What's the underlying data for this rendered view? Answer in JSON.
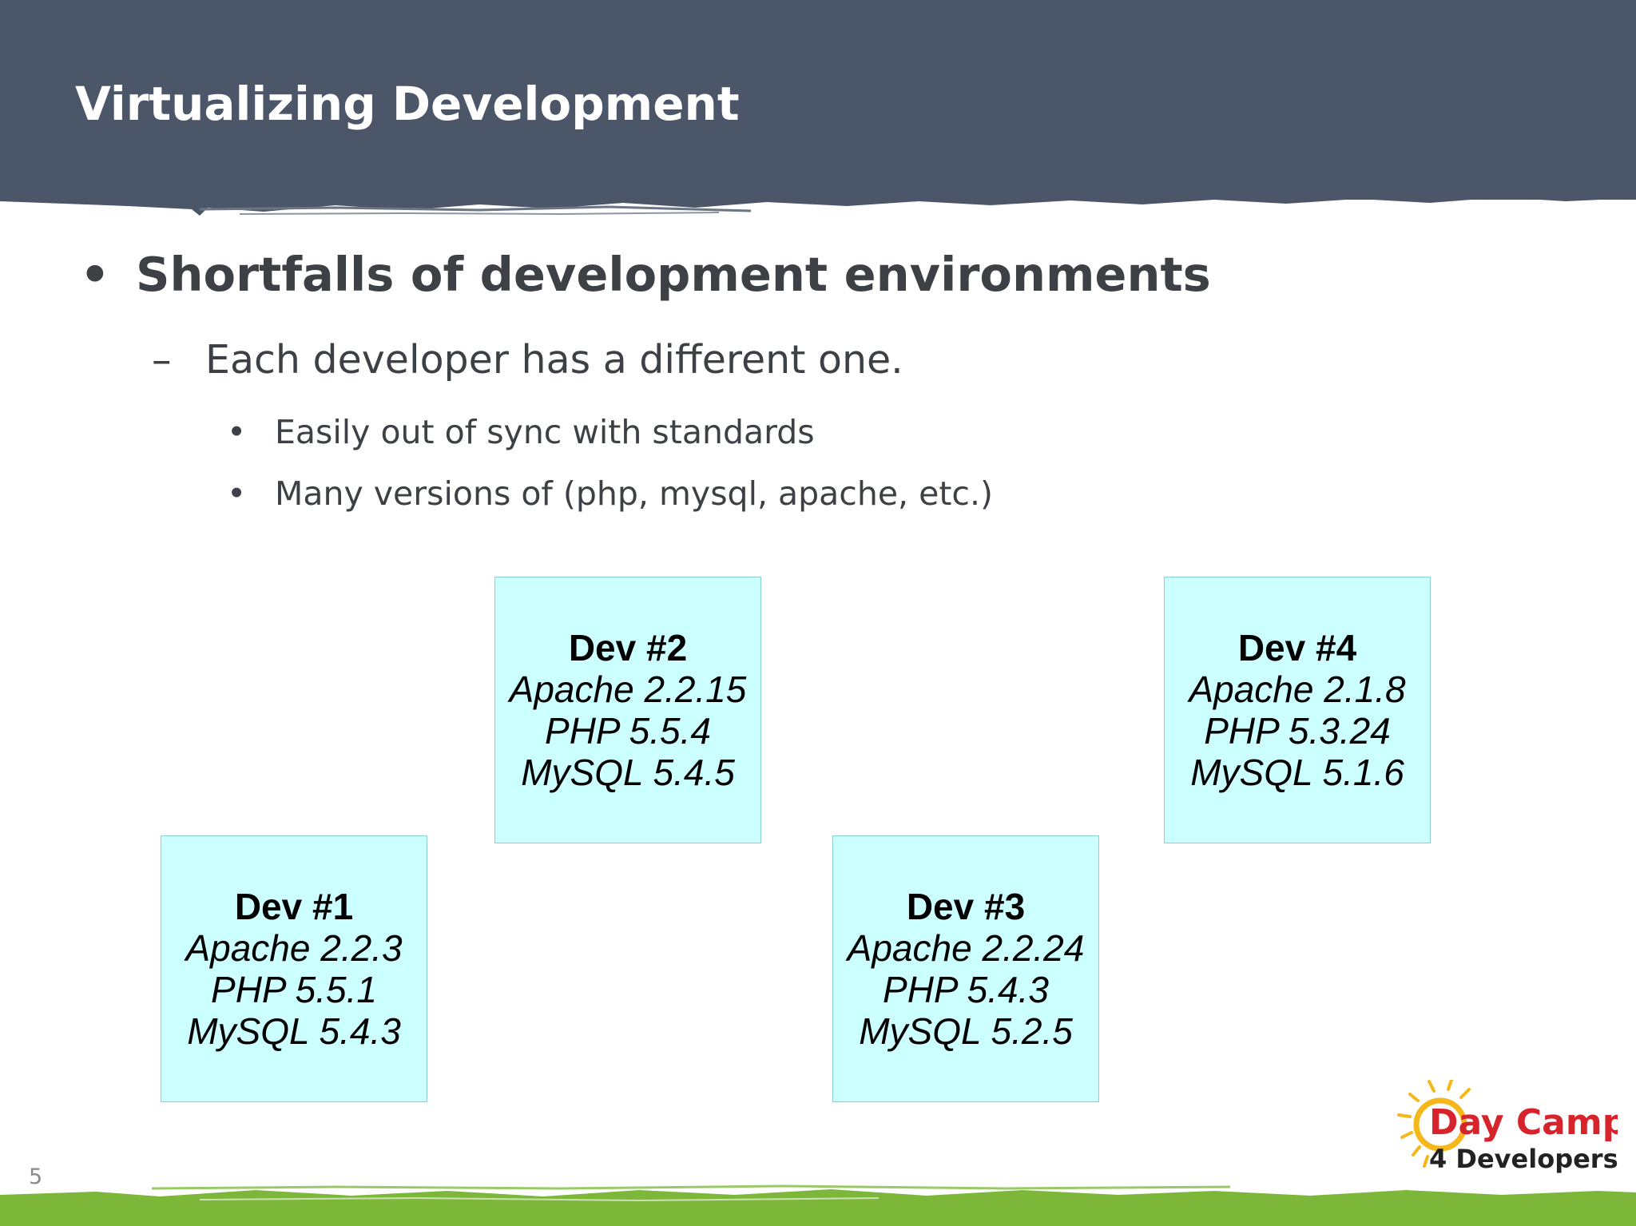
{
  "slide": {
    "title": "Virtualizing Development",
    "number": "5"
  },
  "bullets": {
    "level1": {
      "marker": "•",
      "text": "Shortfalls of development environments"
    },
    "level2": {
      "marker": "–",
      "text": "Each developer has a different one."
    },
    "level3": [
      {
        "marker": "•",
        "text": "Easily out of sync with standards"
      },
      {
        "marker": "•",
        "text": "Many versions of (php, mysql, apache, etc.)"
      }
    ]
  },
  "devs": [
    {
      "name": "Dev #1",
      "apache": "Apache 2.2.3",
      "php": "PHP 5.5.1",
      "mysql": "MySQL 5.4.3"
    },
    {
      "name": "Dev #2",
      "apache": "Apache 2.2.15",
      "php": "PHP 5.5.4",
      "mysql": "MySQL 5.4.5"
    },
    {
      "name": "Dev #3",
      "apache": "Apache 2.2.24",
      "php": "PHP 5.4.3",
      "mysql": "MySQL 5.2.5"
    },
    {
      "name": "Dev #4",
      "apache": "Apache 2.1.8",
      "php": "PHP 5.3.24",
      "mysql": "MySQL 5.1.6"
    }
  ],
  "logo": {
    "line1": "Day Camp",
    "line2": "4 Developers"
  },
  "colors": {
    "header": "#4b5668",
    "box_fill": "#ccffff",
    "box_border": "#8ccfcf",
    "grass": "#7db73a",
    "logo_red": "#d7242c",
    "logo_sun": "#f5b719"
  }
}
